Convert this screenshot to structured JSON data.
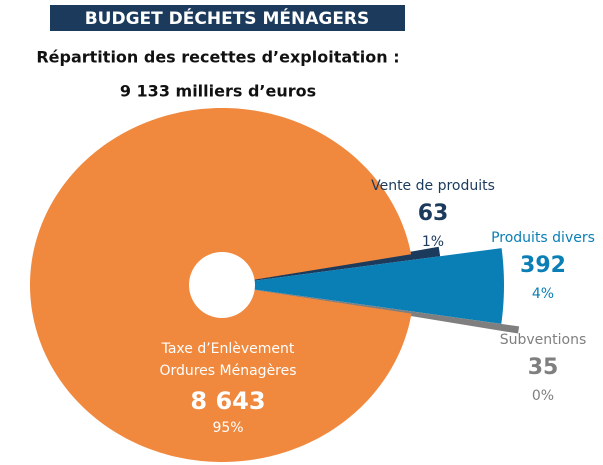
{
  "chart_data": {
    "type": "pie",
    "title": "BUDGET DÉCHETS MÉNAGERS",
    "subtitle": "Répartition des recettes d’exploitation :",
    "total": "9 133 milliers d’euros",
    "categories": [
      "Taxe d’Enlèvement Ordures Ménagères",
      "Vente de produits",
      "Produits divers",
      "Subventions"
    ],
    "values": [
      8643,
      63,
      392,
      35
    ],
    "value_labels": [
      "8 643",
      "63",
      "392",
      "35"
    ],
    "percent_labels": [
      "95%",
      "1%",
      "4%",
      "0%"
    ],
    "colors": [
      "#f0883e",
      "#1b3a5c",
      "#0a7fb5",
      "#7f7f7f"
    ]
  }
}
